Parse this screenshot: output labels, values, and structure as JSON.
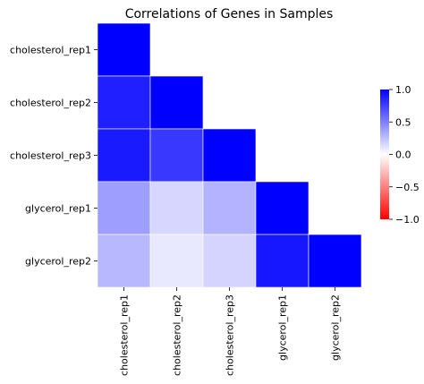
{
  "chart_data": {
    "type": "heatmap",
    "title": "Correlations of Genes in Samples",
    "row_labels": [
      "cholesterol_rep1",
      "cholesterol_rep2",
      "cholesterol_rep3",
      "glycerol_rep1",
      "glycerol_rep2"
    ],
    "col_labels": [
      "cholesterol_rep1",
      "cholesterol_rep2",
      "cholesterol_rep3",
      "glycerol_rep1",
      "glycerol_rep2"
    ],
    "mask": "upper-triangle-hidden",
    "values": [
      [
        1.0,
        null,
        null,
        null,
        null
      ],
      [
        0.88,
        1.0,
        null,
        null,
        null
      ],
      [
        0.9,
        0.78,
        1.0,
        null,
        null
      ],
      [
        0.38,
        0.16,
        0.3,
        1.0,
        null
      ],
      [
        0.28,
        0.09,
        0.17,
        0.91,
        1.0
      ]
    ],
    "colorbar": {
      "min": -1.0,
      "max": 1.0,
      "ticks": [
        "1.0",
        "0.5",
        "0.0",
        "−0.5",
        "−1.0"
      ],
      "tick_values": [
        1.0,
        0.5,
        0.0,
        -0.5,
        -1.0
      ],
      "colors": {
        "low": "#ff0000",
        "mid": "#ffffff",
        "high": "#0000ff"
      }
    }
  }
}
